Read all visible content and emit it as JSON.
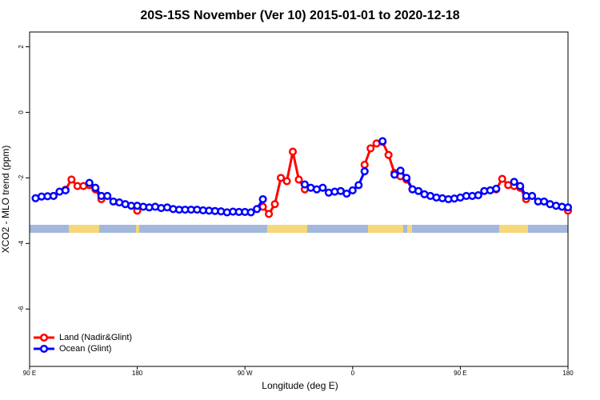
{
  "chart_data": {
    "type": "line",
    "title": "20S-15S November (Ver 10)   2015-01-01 to 2020-12-18",
    "x_label": "Longitude (deg E)",
    "y_label": "XCO2 - MLO trend (ppm)",
    "x": [
      95,
      100,
      105,
      110,
      115,
      120,
      125,
      130,
      135,
      140,
      145,
      150,
      155,
      160,
      165,
      170,
      175,
      180,
      185,
      190,
      195,
      200,
      205,
      210,
      215,
      220,
      225,
      230,
      235,
      240,
      245,
      250,
      255,
      260,
      265,
      270,
      275,
      280,
      285,
      290,
      295,
      300,
      305,
      310,
      315,
      320,
      325,
      330,
      335,
      340,
      345,
      350,
      355,
      360,
      365,
      370,
      375,
      380,
      385,
      390,
      395,
      400,
      405,
      410,
      415,
      420,
      425,
      430,
      435,
      440,
      445,
      450,
      455,
      460,
      465,
      470,
      475,
      480,
      485,
      490,
      495,
      500,
      505,
      510,
      515,
      520,
      525,
      530,
      535,
      540
    ],
    "series": [
      {
        "name": "Land (Nadir&Glint)",
        "color": "#ff0000",
        "values": [
          null,
          null,
          null,
          null,
          null,
          -2.36,
          -2.05,
          -2.25,
          -2.25,
          -2.22,
          -2.35,
          -2.65,
          null,
          null,
          null,
          null,
          null,
          -3.0,
          null,
          null,
          null,
          null,
          null,
          null,
          null,
          null,
          null,
          null,
          null,
          null,
          null,
          null,
          null,
          null,
          null,
          null,
          null,
          null,
          -2.88,
          -3.1,
          -2.8,
          -2.0,
          -2.1,
          -1.2,
          -2.05,
          -2.35,
          null,
          null,
          null,
          null,
          null,
          null,
          null,
          null,
          null,
          -1.6,
          -1.1,
          -0.95,
          -0.9,
          -1.3,
          -1.85,
          -1.95,
          -2.05,
          -2.35,
          null,
          null,
          null,
          null,
          null,
          null,
          null,
          null,
          null,
          null,
          null,
          null,
          null,
          -2.35,
          -2.03,
          -2.22,
          -2.25,
          -2.3,
          -2.65,
          null,
          null,
          null,
          null,
          null,
          null,
          -3.0
        ]
      },
      {
        "name": "Ocean (Glint)",
        "color": "#0000ff",
        "values": [
          -2.62,
          -2.57,
          -2.56,
          -2.55,
          -2.42,
          -2.38,
          null,
          null,
          null,
          -2.15,
          -2.3,
          -2.55,
          -2.55,
          -2.72,
          -2.75,
          -2.8,
          -2.85,
          -2.85,
          -2.88,
          -2.9,
          -2.88,
          -2.92,
          -2.9,
          -2.95,
          -2.97,
          -2.97,
          -2.97,
          -2.97,
          -2.99,
          -3.0,
          -3.01,
          -3.02,
          -3.05,
          -3.03,
          -3.04,
          -3.04,
          -3.05,
          -2.95,
          -2.65,
          null,
          null,
          null,
          null,
          null,
          null,
          -2.2,
          -2.3,
          -2.35,
          -2.3,
          -2.45,
          -2.42,
          -2.4,
          -2.48,
          -2.38,
          -2.22,
          -1.8,
          null,
          null,
          -0.88,
          null,
          -1.9,
          -1.78,
          -2.0,
          -2.35,
          -2.4,
          -2.5,
          -2.55,
          -2.6,
          -2.62,
          -2.65,
          -2.63,
          -2.6,
          -2.55,
          -2.55,
          -2.53,
          -2.4,
          -2.38,
          -2.33,
          null,
          null,
          -2.12,
          -2.25,
          -2.55,
          -2.55,
          -2.72,
          -2.72,
          -2.8,
          -2.85,
          -2.88,
          -2.9
        ]
      }
    ],
    "xlim": [
      90,
      540
    ],
    "xticks": [
      {
        "value": 90,
        "label": "90 E"
      },
      {
        "value": 180,
        "label": "180"
      },
      {
        "value": 270,
        "label": "90 W"
      },
      {
        "value": 360,
        "label": "0"
      },
      {
        "value": 450,
        "label": "90 E"
      },
      {
        "value": 540,
        "label": "180"
      }
    ],
    "ylim": [
      -7.75,
      2.45
    ],
    "yticks": [
      2,
      0,
      -2,
      -4,
      -6
    ],
    "legend": "bottom-left"
  }
}
